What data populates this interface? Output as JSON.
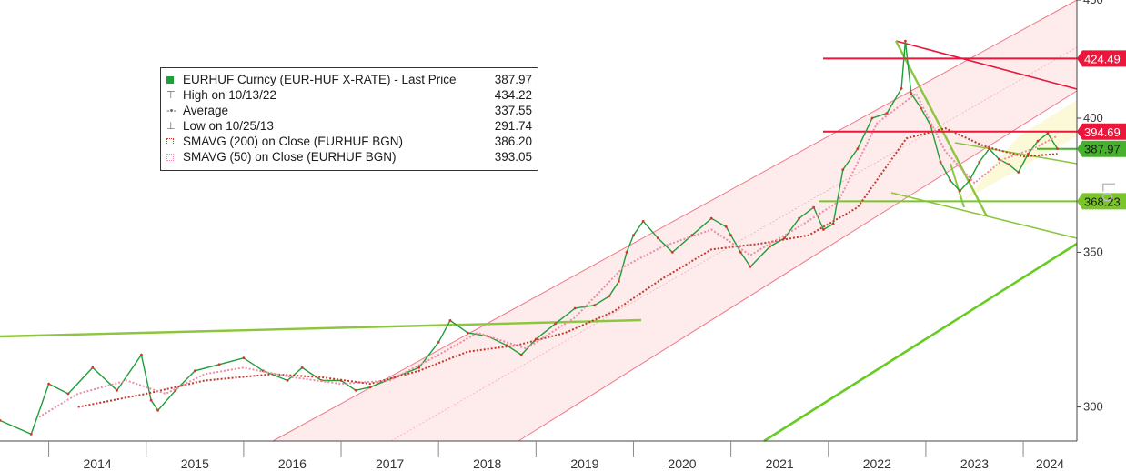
{
  "chart_data": {
    "type": "line",
    "title": "",
    "scale": "log",
    "ylim": [
      290,
      450
    ],
    "xlim": [
      2013.5,
      2024.55
    ],
    "y_ticks": [
      300,
      350,
      400,
      450
    ],
    "x_ticks": [
      "2014",
      "2015",
      "2016",
      "2017",
      "2018",
      "2019",
      "2020",
      "2021",
      "2022",
      "2023",
      "2024"
    ],
    "axis_side": "right",
    "axis_note": "Lo",
    "legend": {
      "placement": "top-left",
      "rows": [
        {
          "label": "EURHUF Curncy (EUR-HUF X-RATE) - Last Price",
          "value": "387.97"
        },
        {
          "label": "High on 10/13/22",
          "value": "434.22"
        },
        {
          "label": "Average",
          "value": "337.55"
        },
        {
          "label": "Low on 10/25/13",
          "value": "291.74"
        },
        {
          "label": "SMAVG (200)  on Close (EURHUF BGN)",
          "value": "386.20"
        },
        {
          "label": "SMAVG (50)  on Close (EURHUF BGN)",
          "value": "393.05"
        }
      ]
    },
    "price_tags": [
      {
        "label": "424.49",
        "value": 424.49,
        "color": "#e8173b"
      },
      {
        "label": "394.69",
        "value": 394.69,
        "color": "#e8173b"
      },
      {
        "label": "387.97",
        "value": 387.97,
        "color": "#47b02d"
      },
      {
        "label": "368.23",
        "value": 368.23,
        "color": "#7ac52a"
      }
    ],
    "series": [
      {
        "name": "EURHUF Curncy (EUR-HUF X-RATE) - Last Price",
        "color": "#1f9e3a",
        "points": [
          [
            2013.5,
            296
          ],
          [
            2013.82,
            292
          ],
          [
            2014.0,
            307
          ],
          [
            2014.2,
            304
          ],
          [
            2014.45,
            312
          ],
          [
            2014.7,
            305
          ],
          [
            2014.95,
            316
          ],
          [
            2015.05,
            302
          ],
          [
            2015.12,
            299
          ],
          [
            2015.3,
            305
          ],
          [
            2015.5,
            311
          ],
          [
            2015.75,
            313
          ],
          [
            2016.0,
            315
          ],
          [
            2016.2,
            311
          ],
          [
            2016.45,
            308
          ],
          [
            2016.6,
            312
          ],
          [
            2016.8,
            308
          ],
          [
            2017.0,
            308
          ],
          [
            2017.15,
            305
          ],
          [
            2017.3,
            306
          ],
          [
            2017.55,
            309
          ],
          [
            2017.8,
            312
          ],
          [
            2018.0,
            320
          ],
          [
            2018.12,
            327
          ],
          [
            2018.3,
            323
          ],
          [
            2018.5,
            322
          ],
          [
            2018.7,
            319
          ],
          [
            2018.85,
            316
          ],
          [
            2019.0,
            321
          ],
          [
            2019.2,
            326
          ],
          [
            2019.4,
            331
          ],
          [
            2019.6,
            332
          ],
          [
            2019.75,
            335
          ],
          [
            2019.85,
            340
          ],
          [
            2019.93,
            350
          ],
          [
            2020.0,
            356
          ],
          [
            2020.1,
            361
          ],
          [
            2020.25,
            355
          ],
          [
            2020.4,
            350
          ],
          [
            2020.6,
            356
          ],
          [
            2020.8,
            362
          ],
          [
            2020.95,
            359
          ],
          [
            2021.0,
            356
          ],
          [
            2021.1,
            350
          ],
          [
            2021.2,
            345
          ],
          [
            2021.4,
            352
          ],
          [
            2021.55,
            355
          ],
          [
            2021.7,
            362
          ],
          [
            2021.85,
            366
          ],
          [
            2021.95,
            358
          ],
          [
            2022.05,
            360
          ],
          [
            2022.15,
            380
          ],
          [
            2022.3,
            388
          ],
          [
            2022.45,
            400
          ],
          [
            2022.6,
            402
          ],
          [
            2022.75,
            412
          ],
          [
            2022.79,
            432
          ],
          [
            2022.85,
            410
          ],
          [
            2022.95,
            404
          ],
          [
            2023.05,
            397
          ],
          [
            2023.15,
            383
          ],
          [
            2023.25,
            376
          ],
          [
            2023.35,
            372
          ],
          [
            2023.45,
            376
          ],
          [
            2023.55,
            383
          ],
          [
            2023.65,
            388
          ],
          [
            2023.75,
            384
          ],
          [
            2023.85,
            382
          ],
          [
            2023.95,
            379
          ],
          [
            2024.05,
            386
          ],
          [
            2024.15,
            391
          ],
          [
            2024.25,
            394
          ],
          [
            2024.35,
            388
          ]
        ]
      },
      {
        "name": "SMAVG (200)  on Close (EURHUF BGN)",
        "color": "#c0392b",
        "points": [
          [
            2014.3,
            300
          ],
          [
            2015.0,
            304
          ],
          [
            2015.6,
            308
          ],
          [
            2016.3,
            310
          ],
          [
            2016.8,
            309
          ],
          [
            2017.3,
            307
          ],
          [
            2017.8,
            311
          ],
          [
            2018.3,
            317
          ],
          [
            2018.8,
            319
          ],
          [
            2019.3,
            323
          ],
          [
            2019.8,
            330
          ],
          [
            2020.3,
            341
          ],
          [
            2020.8,
            351
          ],
          [
            2021.3,
            353
          ],
          [
            2021.8,
            356
          ],
          [
            2022.3,
            366
          ],
          [
            2022.8,
            392
          ],
          [
            2023.2,
            396
          ],
          [
            2023.6,
            389
          ],
          [
            2024.0,
            385
          ],
          [
            2024.35,
            386
          ]
        ]
      },
      {
        "name": "SMAVG (50)  on Close (EURHUF BGN)",
        "color": "#e88fa5",
        "points": [
          [
            2013.9,
            297
          ],
          [
            2014.3,
            304
          ],
          [
            2014.8,
            308
          ],
          [
            2015.2,
            304
          ],
          [
            2015.6,
            310
          ],
          [
            2016.0,
            312
          ],
          [
            2016.5,
            309
          ],
          [
            2017.0,
            307
          ],
          [
            2017.5,
            308
          ],
          [
            2018.0,
            316
          ],
          [
            2018.4,
            323
          ],
          [
            2018.9,
            318
          ],
          [
            2019.4,
            328
          ],
          [
            2019.9,
            345
          ],
          [
            2020.3,
            352
          ],
          [
            2020.8,
            358
          ],
          [
            2021.2,
            349
          ],
          [
            2021.7,
            359
          ],
          [
            2022.1,
            368
          ],
          [
            2022.5,
            398
          ],
          [
            2022.9,
            410
          ],
          [
            2023.2,
            387
          ],
          [
            2023.5,
            375
          ],
          [
            2023.8,
            384
          ],
          [
            2024.1,
            388
          ],
          [
            2024.35,
            393
          ]
        ]
      }
    ]
  }
}
